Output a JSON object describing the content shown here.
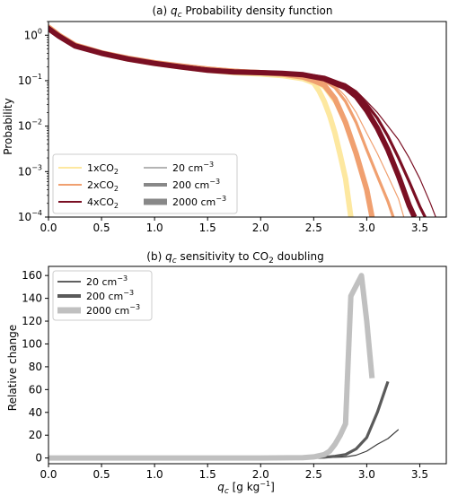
{
  "chart_data": [
    {
      "panel": "a",
      "type": "line",
      "title_prefix": "(a) ",
      "title_var": "q",
      "title_sub": "c",
      "title_rest": " Probability density function",
      "ylabel": "Probability",
      "xlim": [
        0,
        3.75
      ],
      "ylim": [
        0.0001,
        2
      ],
      "yscale": "log",
      "x_ticks": [
        "0.0",
        "0.5",
        "1.0",
        "1.5",
        "2.0",
        "2.5",
        "3.0",
        "3.5"
      ],
      "y_ticks": [
        {
          "base": "10",
          "exp": "0"
        },
        {
          "base": "10",
          "exp": "−1"
        },
        {
          "base": "10",
          "exp": "−2"
        },
        {
          "base": "10",
          "exp": "−3"
        },
        {
          "base": "10",
          "exp": "−4"
        }
      ],
      "grid": false,
      "legend": {
        "placement": "lower-left",
        "co2_entries": [
          {
            "pre": "1xCO",
            "sub": "2",
            "color": "#fde8a0"
          },
          {
            "pre": "2xCO",
            "sub": "2",
            "color": "#f0a070"
          },
          {
            "pre": "4xCO",
            "sub": "2",
            "color": "#7a0f23"
          }
        ],
        "conc_entries": [
          {
            "num": "20",
            "unit": " cm",
            "exp": "−3",
            "width": "thin"
          },
          {
            "num": "200",
            "unit": " cm",
            "exp": "−3",
            "width": "medium"
          },
          {
            "num": "2000",
            "unit": " cm",
            "exp": "−3",
            "width": "thick"
          }
        ]
      },
      "series": [
        {
          "co2": "1x",
          "conc": 20,
          "color": "#fde8a0",
          "x": [
            0,
            0.1,
            0.25,
            0.5,
            0.75,
            1.0,
            1.25,
            1.5,
            1.75,
            2.0,
            2.2,
            2.4,
            2.5,
            2.6,
            2.7,
            2.8,
            2.9,
            3.0,
            3.05
          ],
          "y": [
            1.7,
            1.1,
            0.65,
            0.42,
            0.32,
            0.26,
            0.22,
            0.19,
            0.17,
            0.15,
            0.14,
            0.12,
            0.1,
            0.07,
            0.035,
            0.012,
            0.003,
            0.0005,
            0.0001
          ]
        },
        {
          "co2": "1x",
          "conc": 200,
          "color": "#fde8a0",
          "x": [
            0,
            0.1,
            0.25,
            0.5,
            0.75,
            1.0,
            1.25,
            1.5,
            1.75,
            2.0,
            2.2,
            2.4,
            2.5,
            2.6,
            2.7,
            2.8,
            2.9,
            3.0,
            3.05
          ],
          "y": [
            1.6,
            1.05,
            0.62,
            0.41,
            0.31,
            0.25,
            0.21,
            0.18,
            0.16,
            0.15,
            0.14,
            0.12,
            0.1,
            0.068,
            0.033,
            0.011,
            0.0028,
            0.0005,
            0.0001
          ]
        },
        {
          "co2": "1x",
          "conc": 2000,
          "color": "#fde8a0",
          "x": [
            0,
            0.1,
            0.25,
            0.5,
            0.75,
            1.0,
            1.25,
            1.5,
            1.75,
            2.0,
            2.2,
            2.4,
            2.5,
            2.55,
            2.6,
            2.65,
            2.7,
            2.75,
            2.8,
            2.85
          ],
          "y": [
            1.5,
            1.0,
            0.6,
            0.4,
            0.3,
            0.24,
            0.2,
            0.17,
            0.15,
            0.14,
            0.13,
            0.11,
            0.09,
            0.06,
            0.035,
            0.017,
            0.007,
            0.0023,
            0.0007,
            0.0001
          ]
        },
        {
          "co2": "2x",
          "conc": 20,
          "color": "#f0a070",
          "x": [
            0,
            0.1,
            0.25,
            0.5,
            0.75,
            1.0,
            1.25,
            1.5,
            1.75,
            2.0,
            2.2,
            2.4,
            2.5,
            2.6,
            2.7,
            2.8,
            2.9,
            3.0,
            3.1,
            3.2,
            3.3,
            3.35
          ],
          "y": [
            1.7,
            1.1,
            0.66,
            0.43,
            0.33,
            0.27,
            0.23,
            0.2,
            0.18,
            0.16,
            0.15,
            0.14,
            0.13,
            0.11,
            0.08,
            0.045,
            0.02,
            0.007,
            0.0025,
            0.0008,
            0.00025,
            0.0001
          ]
        },
        {
          "co2": "2x",
          "conc": 200,
          "color": "#f0a070",
          "x": [
            0,
            0.1,
            0.25,
            0.5,
            0.75,
            1.0,
            1.25,
            1.5,
            1.75,
            2.0,
            2.2,
            2.4,
            2.5,
            2.6,
            2.7,
            2.8,
            2.9,
            3.0,
            3.1,
            3.2,
            3.25
          ],
          "y": [
            1.6,
            1.05,
            0.63,
            0.42,
            0.32,
            0.26,
            0.22,
            0.19,
            0.17,
            0.16,
            0.15,
            0.13,
            0.12,
            0.1,
            0.07,
            0.035,
            0.012,
            0.003,
            0.0008,
            0.00022,
            0.0001
          ]
        },
        {
          "co2": "2x",
          "conc": 2000,
          "color": "#f0a070",
          "x": [
            0,
            0.1,
            0.25,
            0.5,
            0.75,
            1.0,
            1.25,
            1.5,
            1.75,
            2.0,
            2.2,
            2.4,
            2.5,
            2.6,
            2.7,
            2.8,
            2.9,
            3.0,
            3.05
          ],
          "y": [
            1.5,
            1.0,
            0.61,
            0.41,
            0.31,
            0.25,
            0.21,
            0.18,
            0.16,
            0.15,
            0.14,
            0.12,
            0.1,
            0.08,
            0.04,
            0.012,
            0.0025,
            0.0004,
            0.0001
          ]
        },
        {
          "co2": "4x",
          "conc": 20,
          "color": "#7a0f23",
          "x": [
            0,
            0.1,
            0.25,
            0.5,
            0.75,
            1.0,
            1.25,
            1.5,
            1.75,
            2.0,
            2.2,
            2.4,
            2.6,
            2.8,
            2.9,
            3.0,
            3.1,
            3.2,
            3.3,
            3.4,
            3.5,
            3.6,
            3.65
          ],
          "y": [
            1.6,
            1.05,
            0.63,
            0.42,
            0.32,
            0.26,
            0.22,
            0.19,
            0.17,
            0.16,
            0.15,
            0.14,
            0.12,
            0.085,
            0.06,
            0.035,
            0.02,
            0.01,
            0.005,
            0.002,
            0.0007,
            0.0002,
            0.0001
          ]
        },
        {
          "co2": "4x",
          "conc": 200,
          "color": "#7a0f23",
          "x": [
            0,
            0.1,
            0.25,
            0.5,
            0.75,
            1.0,
            1.25,
            1.5,
            1.75,
            2.0,
            2.2,
            2.4,
            2.6,
            2.8,
            2.9,
            3.0,
            3.1,
            3.2,
            3.3,
            3.4,
            3.5,
            3.55
          ],
          "y": [
            1.5,
            1.0,
            0.6,
            0.41,
            0.31,
            0.25,
            0.21,
            0.18,
            0.16,
            0.155,
            0.15,
            0.14,
            0.12,
            0.08,
            0.055,
            0.03,
            0.015,
            0.006,
            0.002,
            0.0006,
            0.00017,
            0.0001
          ]
        },
        {
          "co2": "4x",
          "conc": 2000,
          "color": "#7a0f23",
          "x": [
            0,
            0.1,
            0.25,
            0.5,
            0.75,
            1.0,
            1.25,
            1.5,
            1.75,
            2.0,
            2.2,
            2.4,
            2.6,
            2.8,
            2.9,
            3.0,
            3.1,
            3.2,
            3.3,
            3.4,
            3.45
          ],
          "y": [
            1.4,
            0.95,
            0.58,
            0.4,
            0.3,
            0.24,
            0.2,
            0.17,
            0.155,
            0.15,
            0.145,
            0.135,
            0.11,
            0.07,
            0.045,
            0.022,
            0.009,
            0.003,
            0.0008,
            0.00018,
            0.0001
          ]
        }
      ]
    },
    {
      "panel": "b",
      "type": "line",
      "title_prefix": "(b) ",
      "title_var": "q",
      "title_sub": "c",
      "title_rest": " sensitivity to CO",
      "title_sub2": "2",
      "title_end": " doubling",
      "ylabel": "Relative change",
      "xlabel_var": "q",
      "xlabel_sub": "c",
      "xlabel_unit": " [g kg",
      "xlabel_exp": "−1",
      "xlabel_close": "]",
      "xlim": [
        0,
        3.75
      ],
      "ylim": [
        -5,
        168
      ],
      "x_ticks": [
        "0.0",
        "0.5",
        "1.0",
        "1.5",
        "2.0",
        "2.5",
        "3.0",
        "3.5"
      ],
      "y_ticks": [
        "0",
        "20",
        "40",
        "60",
        "80",
        "100",
        "120",
        "140",
        "160"
      ],
      "grid": false,
      "legend": {
        "placement": "top-left",
        "entries": [
          {
            "num": "20",
            "unit": " cm",
            "exp": "−3",
            "color": "#000000",
            "width": "thin"
          },
          {
            "num": "200",
            "unit": " cm",
            "exp": "−3",
            "color": "#5a5a5a",
            "width": "medium"
          },
          {
            "num": "2000",
            "unit": " cm",
            "exp": "−3",
            "color": "#c0c0c0",
            "width": "thick"
          }
        ]
      },
      "series": [
        {
          "name": "20 cm−3",
          "color": "#3a3a3a",
          "x": [
            0,
            0.5,
            1.0,
            1.5,
            2.0,
            2.4,
            2.6,
            2.8,
            2.9,
            3.0,
            3.1,
            3.2,
            3.3
          ],
          "y": [
            0,
            0,
            0,
            0,
            0,
            0.1,
            0.3,
            1,
            2.5,
            6,
            12,
            17,
            25
          ]
        },
        {
          "name": "200 cm−3",
          "color": "#5a5a5a",
          "x": [
            0,
            0.5,
            1.0,
            1.5,
            2.0,
            2.4,
            2.6,
            2.7,
            2.8,
            2.9,
            3.0,
            3.1,
            3.2
          ],
          "y": [
            0,
            0,
            0,
            0,
            0,
            0.2,
            0.7,
            1.5,
            3,
            8,
            18,
            40,
            67
          ]
        },
        {
          "name": "2000 cm−3",
          "color": "#c0c0c0",
          "x": [
            0,
            0.5,
            1.0,
            1.5,
            2.0,
            2.4,
            2.5,
            2.6,
            2.65,
            2.7,
            2.75,
            2.8,
            2.85,
            2.95,
            3.0,
            3.05
          ],
          "y": [
            0,
            0,
            0,
            0,
            0,
            0.3,
            1,
            3,
            6,
            12,
            20,
            30,
            142,
            160,
            120,
            70
          ]
        }
      ]
    }
  ]
}
